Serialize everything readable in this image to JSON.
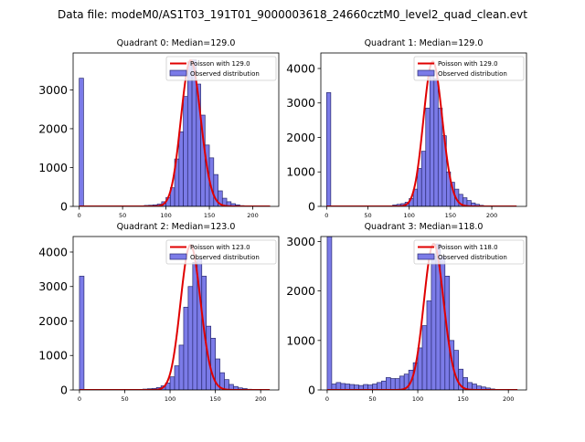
{
  "suptitle": "Data file: modeM0/AS1T03_191T01_9000003618_24660cztM0_level2_quad_clean.evt",
  "colors": {
    "bar_fill": "#7b7be8",
    "bar_edge": "#2a2a70",
    "poisson_line": "#e00000",
    "axis": "#000000"
  },
  "chart_data": [
    {
      "type": "bar",
      "title": "Quadrant 0: Median=129.0",
      "median": 129.0,
      "legend_location": "top-right",
      "legend": [
        "Poisson with 129.0",
        "Observed distribution"
      ],
      "xlim": [
        -7,
        230
      ],
      "ylim": [
        0,
        3950
      ],
      "xticks": [
        0,
        50,
        100,
        150,
        200
      ],
      "yticks": [
        0,
        1000,
        2000,
        3000
      ],
      "bin_width": 5,
      "bins": [
        [
          0,
          3300
        ],
        [
          70,
          15
        ],
        [
          75,
          25
        ],
        [
          80,
          30
        ],
        [
          85,
          40
        ],
        [
          90,
          60
        ],
        [
          95,
          120
        ],
        [
          100,
          230
        ],
        [
          105,
          480
        ],
        [
          110,
          1220
        ],
        [
          115,
          1920
        ],
        [
          120,
          2830
        ],
        [
          125,
          3720
        ],
        [
          130,
          3770
        ],
        [
          135,
          3150
        ],
        [
          140,
          2350
        ],
        [
          145,
          1580
        ],
        [
          150,
          1250
        ],
        [
          155,
          820
        ],
        [
          160,
          400
        ],
        [
          165,
          210
        ],
        [
          170,
          120
        ],
        [
          175,
          70
        ],
        [
          180,
          40
        ],
        [
          185,
          20
        ],
        [
          190,
          10
        ]
      ],
      "poisson_x_range": [
        0,
        220
      ],
      "poisson_peak": 3760
    },
    {
      "type": "bar",
      "title": "Quadrant 1: Median=129.0",
      "median": 129.0,
      "legend_location": "top-right",
      "legend": [
        "Poisson with 129.0",
        "Observed distribution"
      ],
      "xlim": [
        -7,
        242
      ],
      "ylim": [
        0,
        4450
      ],
      "xticks": [
        0,
        50,
        100,
        150,
        200
      ],
      "yticks": [
        0,
        1000,
        2000,
        3000,
        4000
      ],
      "bin_width": 5,
      "bins": [
        [
          0,
          3300
        ],
        [
          80,
          40
        ],
        [
          85,
          60
        ],
        [
          90,
          80
        ],
        [
          95,
          120
        ],
        [
          100,
          230
        ],
        [
          105,
          500
        ],
        [
          110,
          1100
        ],
        [
          115,
          1600
        ],
        [
          120,
          2850
        ],
        [
          125,
          3850
        ],
        [
          130,
          3700
        ],
        [
          135,
          2850
        ],
        [
          140,
          2050
        ],
        [
          145,
          1000
        ],
        [
          150,
          700
        ],
        [
          155,
          500
        ],
        [
          160,
          350
        ],
        [
          165,
          250
        ],
        [
          170,
          170
        ],
        [
          175,
          100
        ],
        [
          180,
          60
        ],
        [
          185,
          30
        ],
        [
          190,
          15
        ]
      ],
      "poisson_x_range": [
        0,
        230
      ],
      "poisson_peak": 4200
    },
    {
      "type": "bar",
      "title": "Quadrant 2: Median=123.0",
      "median": 123.0,
      "legend_location": "top-right",
      "legend": [
        "Poisson with 123.0",
        "Observed distribution"
      ],
      "xlim": [
        -7,
        220
      ],
      "ylim": [
        0,
        4450
      ],
      "xticks": [
        0,
        50,
        100,
        150,
        200
      ],
      "yticks": [
        0,
        1000,
        2000,
        3000,
        4000
      ],
      "bin_width": 5,
      "bins": [
        [
          0,
          3300
        ],
        [
          70,
          25
        ],
        [
          75,
          35
        ],
        [
          80,
          45
        ],
        [
          85,
          70
        ],
        [
          90,
          120
        ],
        [
          95,
          200
        ],
        [
          100,
          380
        ],
        [
          105,
          700
        ],
        [
          110,
          1300
        ],
        [
          115,
          2400
        ],
        [
          120,
          3000
        ],
        [
          125,
          3700
        ],
        [
          130,
          3800
        ],
        [
          135,
          3300
        ],
        [
          140,
          1850
        ],
        [
          145,
          1500
        ],
        [
          150,
          900
        ],
        [
          155,
          500
        ],
        [
          160,
          300
        ],
        [
          165,
          160
        ],
        [
          170,
          100
        ],
        [
          175,
          60
        ],
        [
          180,
          40
        ],
        [
          185,
          20
        ],
        [
          190,
          10
        ]
      ],
      "poisson_x_range": [
        0,
        210
      ],
      "poisson_peak": 4200
    },
    {
      "type": "bar",
      "title": "Quadrant 3: Median=118.0",
      "median": 118.0,
      "legend_location": "top-right",
      "legend": [
        "Poisson with 118.0",
        "Observed distribution"
      ],
      "xlim": [
        -7,
        220
      ],
      "ylim": [
        0,
        3100
      ],
      "xticks": [
        0,
        50,
        100,
        150,
        200
      ],
      "yticks": [
        0,
        1000,
        2000,
        3000
      ],
      "bin_width": 5,
      "bins": [
        [
          0,
          3100
        ],
        [
          5,
          120
        ],
        [
          10,
          150
        ],
        [
          15,
          130
        ],
        [
          20,
          120
        ],
        [
          25,
          110
        ],
        [
          30,
          100
        ],
        [
          35,
          90
        ],
        [
          40,
          110
        ],
        [
          45,
          100
        ],
        [
          50,
          120
        ],
        [
          55,
          150
        ],
        [
          60,
          180
        ],
        [
          65,
          250
        ],
        [
          70,
          230
        ],
        [
          75,
          230
        ],
        [
          80,
          280
        ],
        [
          85,
          320
        ],
        [
          90,
          400
        ],
        [
          95,
          550
        ],
        [
          100,
          850
        ],
        [
          105,
          1300
        ],
        [
          110,
          1800
        ],
        [
          115,
          2700
        ],
        [
          120,
          2950
        ],
        [
          125,
          2700
        ],
        [
          130,
          2300
        ],
        [
          135,
          1000
        ],
        [
          140,
          800
        ],
        [
          145,
          420
        ],
        [
          150,
          250
        ],
        [
          155,
          150
        ],
        [
          160,
          120
        ],
        [
          165,
          80
        ],
        [
          170,
          60
        ],
        [
          175,
          40
        ],
        [
          180,
          20
        ],
        [
          185,
          10
        ]
      ],
      "poisson_x_range": [
        0,
        210
      ],
      "poisson_peak": 2950
    }
  ]
}
